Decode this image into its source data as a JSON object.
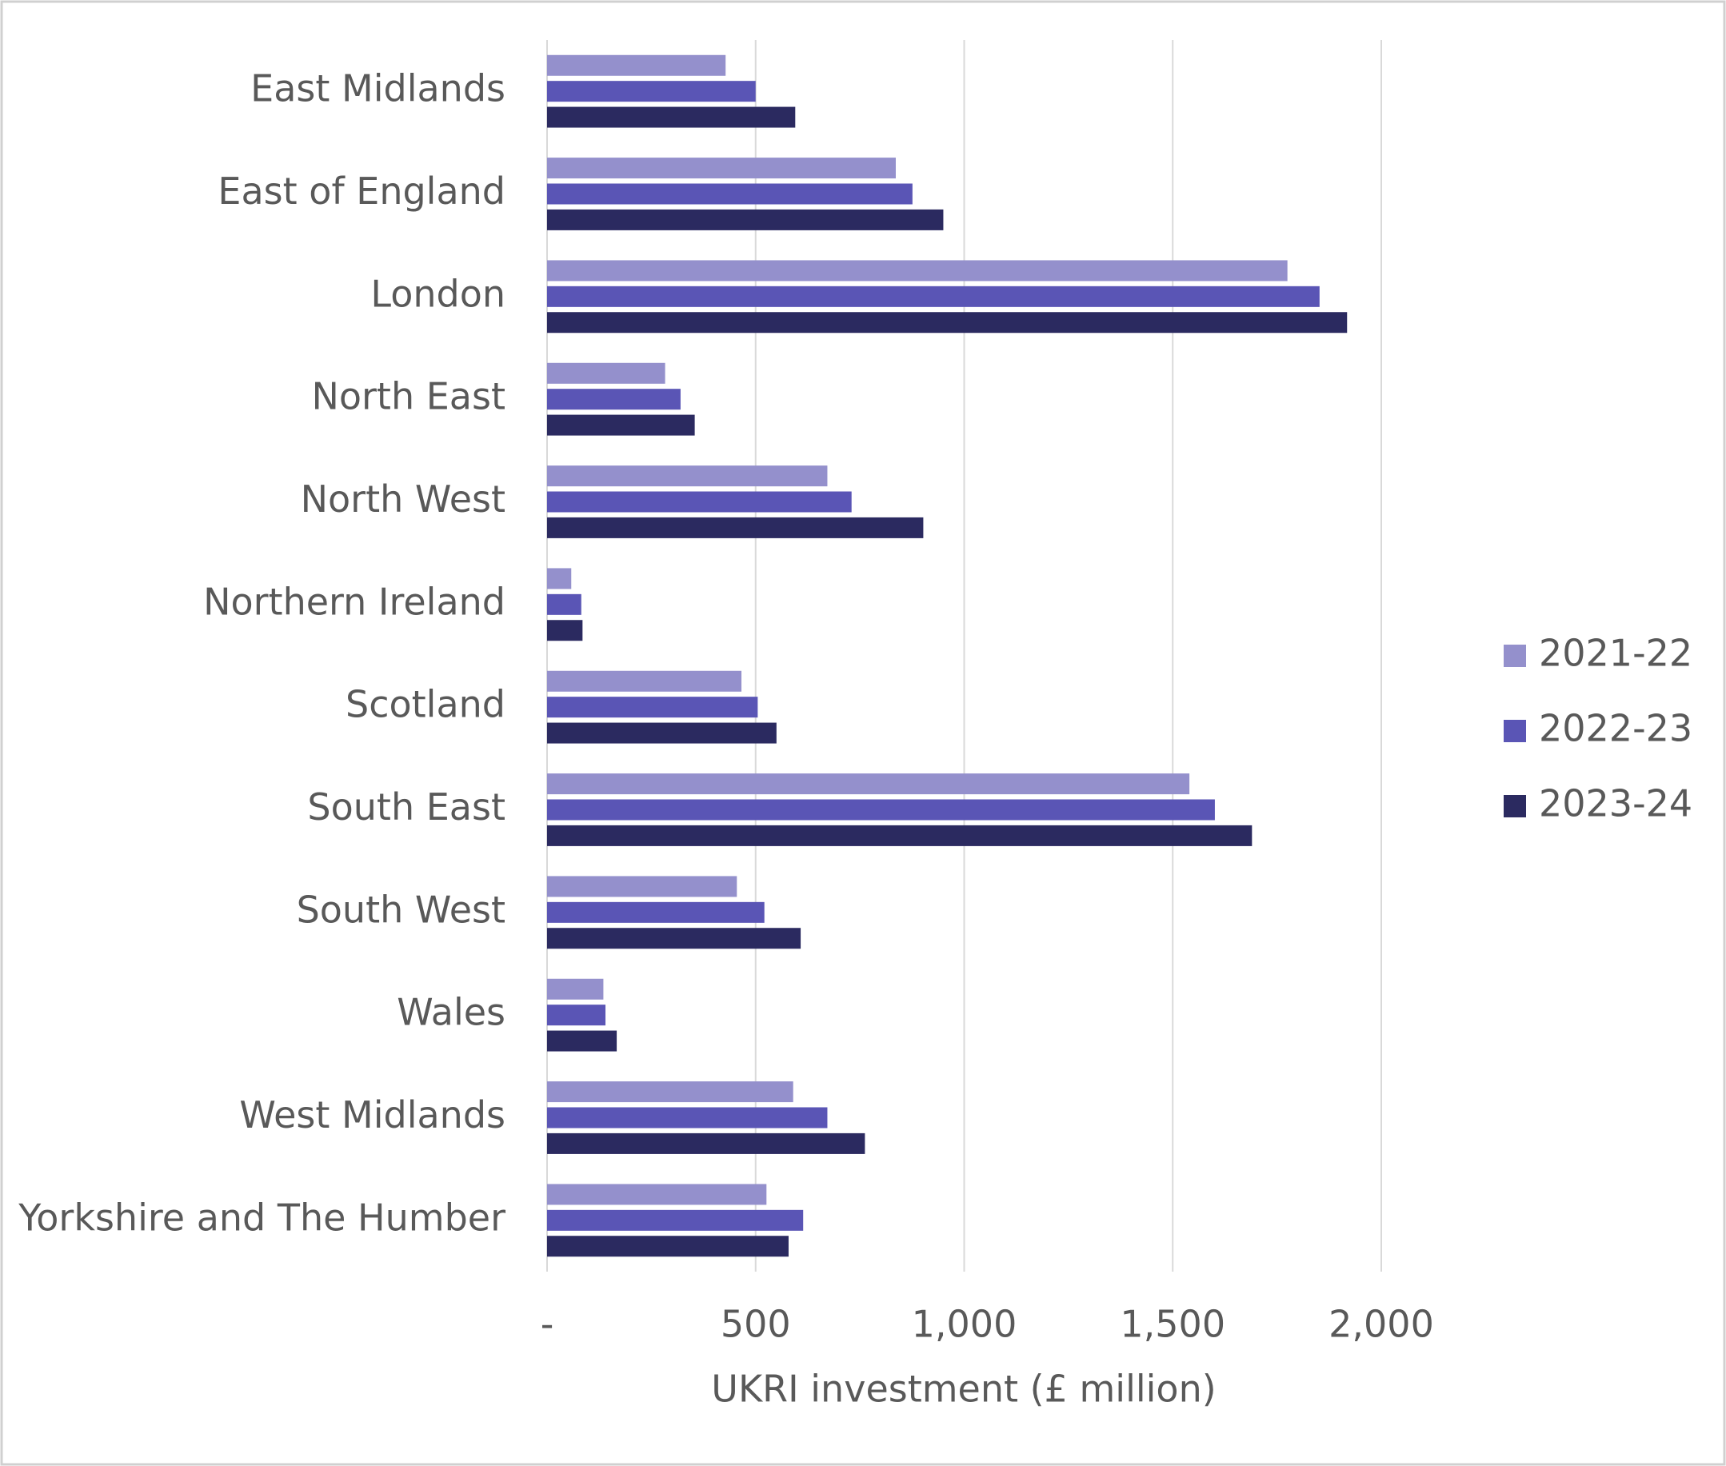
{
  "chart_data": {
    "type": "hbar",
    "x_label": "UKRI investment (£ million)",
    "categories": [
      "East Midlands",
      "East of England",
      "London",
      "North East",
      "North West",
      "Northern Ireland",
      "Scotland",
      "South East",
      "South West",
      "Wales",
      "West Midlands",
      "Yorkshire and The Humber"
    ],
    "series": [
      {
        "name": "2021-22",
        "color": "#9490cc",
        "values": [
          428,
          836,
          1775,
          283,
          672,
          58,
          466,
          1540,
          455,
          135,
          590,
          526
        ]
      },
      {
        "name": "2022-23",
        "color": "#5a55b5",
        "values": [
          500,
          876,
          1852,
          320,
          730,
          82,
          505,
          1601,
          521,
          140,
          672,
          614
        ]
      },
      {
        "name": "2023-24",
        "color": "#2b2a60",
        "values": [
          595,
          950,
          1918,
          354,
          902,
          85,
          550,
          1690,
          608,
          167,
          762,
          579
        ]
      }
    ],
    "xlim": [
      0,
      2000
    ],
    "xticks": [
      {
        "value": 0,
        "label": "-"
      },
      500,
      {
        "value": 1000,
        "label": "1,000"
      },
      {
        "value": 1500,
        "label": "1,500"
      },
      {
        "value": 2000,
        "label": "2,000"
      }
    ],
    "grid": true,
    "legend": "right"
  }
}
